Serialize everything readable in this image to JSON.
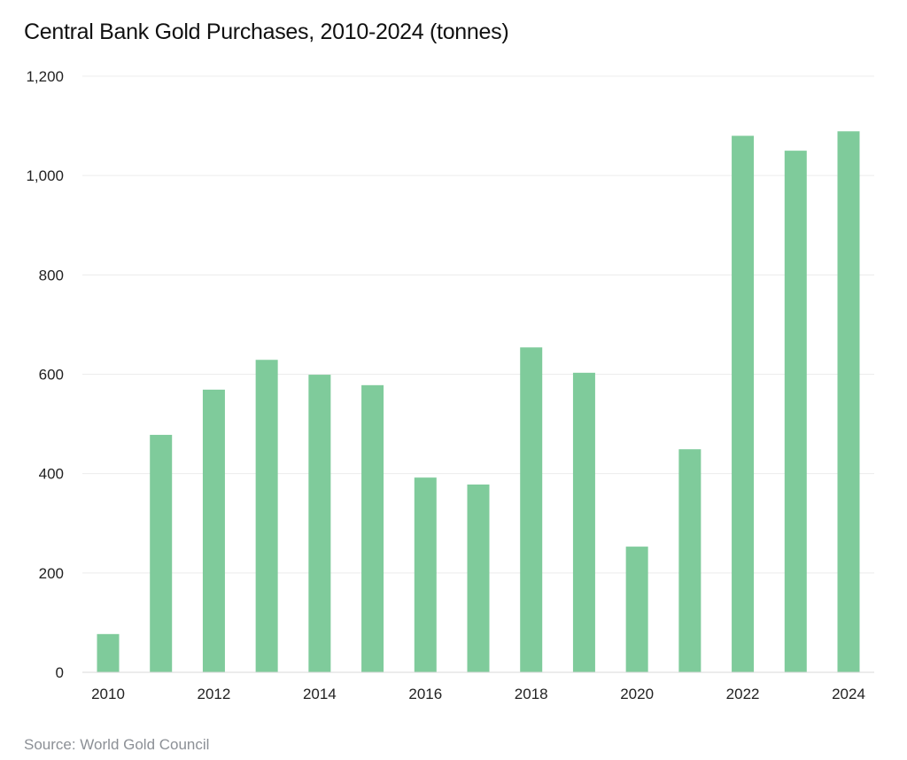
{
  "chart_data": {
    "type": "bar",
    "title": "Central Bank Gold Purchases, 2010-2024 (tonnes)",
    "source": "Source: World Gold Council",
    "categories": [
      "2010",
      "2011",
      "2012",
      "2013",
      "2014",
      "2015",
      "2016",
      "2017",
      "2018",
      "2019",
      "2020",
      "2021",
      "2022",
      "2023",
      "2024"
    ],
    "values": [
      77,
      478,
      569,
      629,
      599,
      578,
      392,
      378,
      654,
      603,
      253,
      449,
      1080,
      1050,
      1089
    ],
    "x_tick_labels": [
      "2010",
      "2012",
      "2014",
      "2016",
      "2018",
      "2020",
      "2022",
      "2024"
    ],
    "y_tick_labels": [
      "0",
      "200",
      "400",
      "600",
      "800",
      "1,000",
      "1,200"
    ],
    "y_ticks": [
      0,
      200,
      400,
      600,
      800,
      1000,
      1200
    ],
    "ylim": [
      0,
      1200
    ],
    "xlabel": "",
    "ylabel": "",
    "grid": true,
    "bar_color": "#7fcb9b",
    "grid_color": "#ececec"
  }
}
